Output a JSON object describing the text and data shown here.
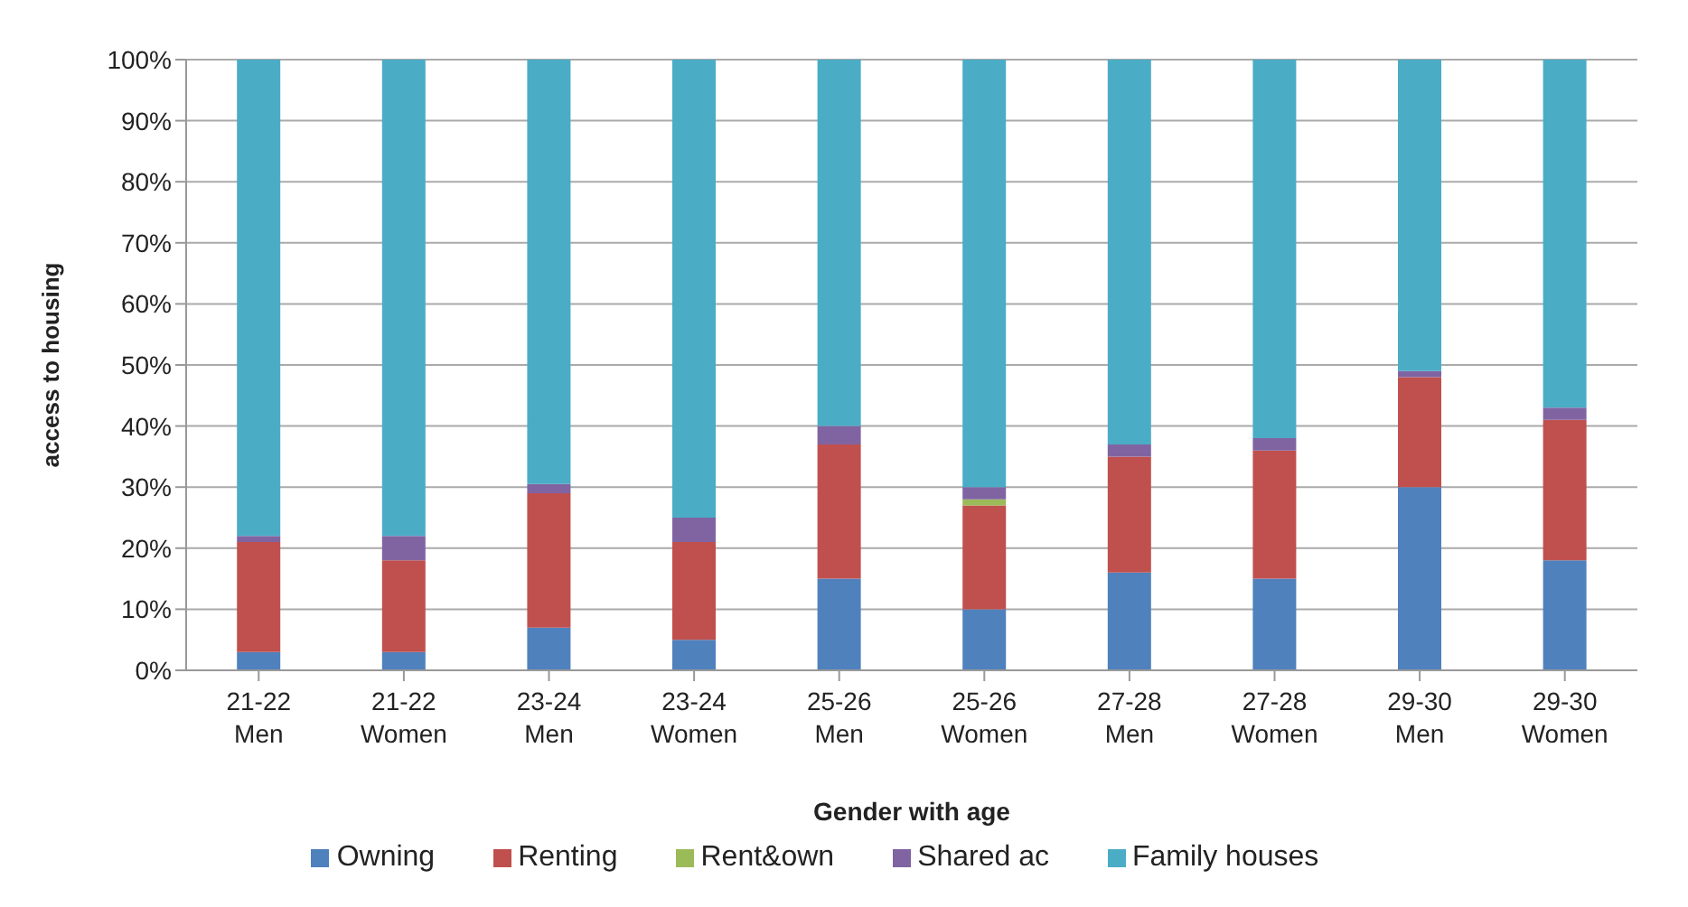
{
  "chart_data": {
    "type": "bar",
    "stacked": true,
    "xlabel": "Gender with age",
    "ylabel": "access to housing",
    "categories": [
      "21-22 Men",
      "21-22 Women",
      "23-24 Men",
      "23-24 Women",
      "25-26 Men",
      "25-26 Women",
      "27-28 Men",
      "27-28 Women",
      "29-30 Men",
      "29-30 Women"
    ],
    "series": [
      {
        "name": "Owning",
        "color": "#4f81bd",
        "values": [
          3,
          3,
          7,
          5,
          15,
          10,
          16,
          15,
          30,
          18
        ]
      },
      {
        "name": "Renting",
        "color": "#c0504d",
        "values": [
          18,
          15,
          22,
          16,
          22,
          17,
          19,
          21,
          18,
          23
        ]
      },
      {
        "name": "Rent&own",
        "color": "#9bbb59",
        "values": [
          0,
          0,
          0,
          0,
          0,
          1,
          0,
          0,
          0,
          0
        ]
      },
      {
        "name": "Shared ac",
        "color": "#8064a2",
        "values": [
          1,
          4,
          1.5,
          4,
          3,
          2,
          2,
          2,
          1,
          2
        ]
      },
      {
        "name": "Family houses",
        "color": "#4bacc6",
        "values": [
          78,
          78,
          69.5,
          75,
          60,
          70,
          63,
          62,
          51,
          57
        ]
      }
    ],
    "ylim": [
      0,
      100
    ],
    "yticks": [
      {
        "value": 0,
        "label": "0%"
      },
      {
        "value": 10,
        "label": "10%"
      },
      {
        "value": 20,
        "label": "20%"
      },
      {
        "value": 30,
        "label": "30%"
      },
      {
        "value": 40,
        "label": "40%"
      },
      {
        "value": 50,
        "label": "50%"
      },
      {
        "value": 60,
        "label": "60%"
      },
      {
        "value": 70,
        "label": "70%"
      },
      {
        "value": 80,
        "label": "80%"
      },
      {
        "value": 90,
        "label": "90%"
      },
      {
        "value": 100,
        "label": "100%"
      }
    ],
    "grid": "y",
    "legend": "bottom"
  }
}
